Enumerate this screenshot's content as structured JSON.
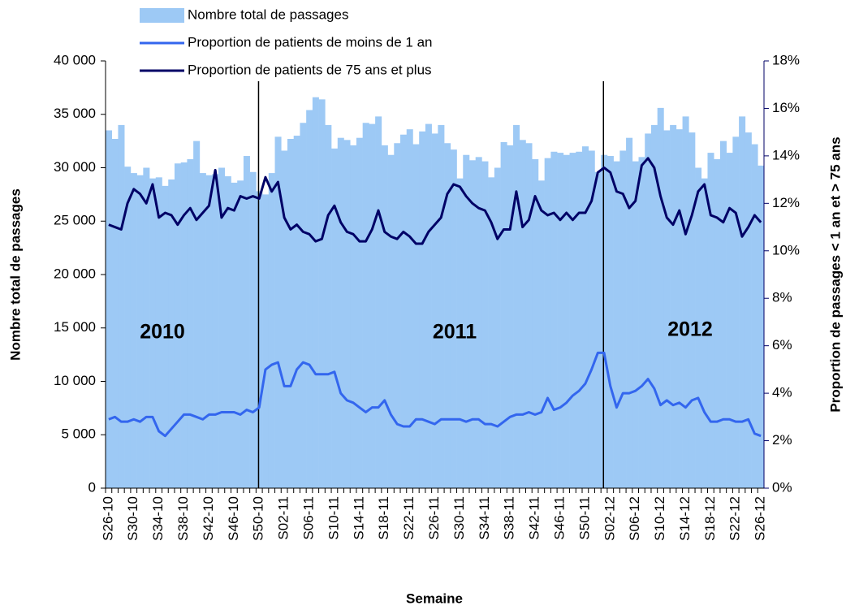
{
  "chart_data": {
    "type": "bar",
    "xlabel": "Semaine",
    "ylabel": "Nombre total de passages",
    "y2label": "Proportion de passages < 1 an et > 75 ans",
    "annotations": [
      "2010",
      "2011",
      "2012"
    ],
    "categories": [
      "S26-10",
      null,
      null,
      null,
      "S30-10",
      null,
      null,
      null,
      "S34-10",
      null,
      null,
      null,
      "S38-10",
      null,
      null,
      null,
      "S42-10",
      null,
      null,
      null,
      "S46-10",
      null,
      null,
      null,
      "S50-10",
      null,
      null,
      null,
      "S02-11",
      null,
      null,
      null,
      "S06-11",
      null,
      null,
      null,
      "S10-11",
      null,
      null,
      null,
      "S14-11",
      null,
      null,
      null,
      "S18-11",
      null,
      null,
      null,
      "S22-11",
      null,
      null,
      null,
      "S26-11",
      null,
      null,
      null,
      "S30-11",
      null,
      null,
      null,
      "S34-11",
      null,
      null,
      null,
      "S38-11",
      null,
      null,
      null,
      "S42-11",
      null,
      null,
      null,
      "S46-11",
      null,
      null,
      null,
      "S50-11",
      null,
      null,
      null,
      "S02-12",
      null,
      null,
      null,
      "S06-12",
      null,
      null,
      null,
      "S10-12",
      null,
      null,
      null,
      "S14-12",
      null,
      null,
      null,
      "S18-12",
      null,
      null,
      null,
      "S22-12",
      null,
      null,
      null,
      "S26-12"
    ],
    "series": [
      {
        "name": "Nombre total de passages",
        "type": "bar",
        "color": "#9dc9f5",
        "values": [
          33500,
          32700,
          34000,
          30100,
          29500,
          29300,
          30000,
          29000,
          29100,
          28300,
          28900,
          30400,
          30500,
          30800,
          32500,
          29500,
          29300,
          29400,
          30000,
          29200,
          28600,
          28800,
          31100,
          29600,
          27800,
          27500,
          29500,
          32900,
          31600,
          32700,
          33000,
          34200,
          35400,
          36600,
          36400,
          34000,
          31800,
          32800,
          32600,
          32100,
          32800,
          34200,
          34100,
          34800,
          32100,
          31200,
          32300,
          33100,
          33600,
          32200,
          33400,
          34100,
          33200,
          34000,
          32300,
          31700,
          29000,
          31200,
          30700,
          31000,
          30600,
          29100,
          30000,
          32400,
          32100,
          34000,
          32600,
          32300,
          30800,
          28800,
          30900,
          31500,
          31400,
          31200,
          31400,
          31500,
          32000,
          31600,
          29600,
          31200,
          31100,
          30600,
          31600,
          32800,
          30600,
          31000,
          33200,
          34000,
          35600,
          33500,
          34000,
          33600,
          34800,
          33300,
          30000,
          29000,
          31400,
          30800,
          32500,
          31400,
          32900,
          34800,
          33300,
          32200,
          30200
        ]
      },
      {
        "name": "Proportion de patients de moins de 1 an",
        "type": "line",
        "axis": "y2",
        "color": "#3366ee",
        "values": [
          2.9,
          3.0,
          2.8,
          2.8,
          2.9,
          2.8,
          3.0,
          3.0,
          2.4,
          2.2,
          2.5,
          2.8,
          3.1,
          3.1,
          3.0,
          2.9,
          3.1,
          3.1,
          3.2,
          3.2,
          3.2,
          3.1,
          3.3,
          3.2,
          3.4,
          5.0,
          5.2,
          5.3,
          4.3,
          4.3,
          5.0,
          5.3,
          5.2,
          4.8,
          4.8,
          4.8,
          4.9,
          4.0,
          3.7,
          3.6,
          3.4,
          3.2,
          3.4,
          3.4,
          3.7,
          3.1,
          2.7,
          2.6,
          2.6,
          2.9,
          2.9,
          2.8,
          2.7,
          2.9,
          2.9,
          2.9,
          2.9,
          2.8,
          2.9,
          2.9,
          2.7,
          2.7,
          2.6,
          2.8,
          3.0,
          3.1,
          3.1,
          3.2,
          3.1,
          3.2,
          3.8,
          3.3,
          3.4,
          3.6,
          3.9,
          4.1,
          4.4,
          5.0,
          5.7,
          5.7,
          4.3,
          3.4,
          4.0,
          4.0,
          4.1,
          4.3,
          4.6,
          4.2,
          3.5,
          3.7,
          3.5,
          3.6,
          3.4,
          3.7,
          3.8,
          3.2,
          2.8,
          2.8,
          2.9,
          2.9,
          2.8,
          2.8,
          2.9,
          2.3,
          2.2
        ]
      },
      {
        "name": "Proportion de patients de 75 ans et plus",
        "type": "line",
        "axis": "y2",
        "color": "#000066",
        "values": [
          11.1,
          11.0,
          10.9,
          12.0,
          12.6,
          12.4,
          12.0,
          12.8,
          11.4,
          11.6,
          11.5,
          11.1,
          11.5,
          11.8,
          11.3,
          11.6,
          11.9,
          13.4,
          11.4,
          11.8,
          11.7,
          12.3,
          12.2,
          12.3,
          12.2,
          13.1,
          12.5,
          12.9,
          11.4,
          10.9,
          11.1,
          10.8,
          10.7,
          10.4,
          10.5,
          11.5,
          11.9,
          11.2,
          10.8,
          10.7,
          10.4,
          10.4,
          10.9,
          11.7,
          10.8,
          10.6,
          10.5,
          10.8,
          10.6,
          10.3,
          10.3,
          10.8,
          11.1,
          11.4,
          12.4,
          12.8,
          12.7,
          12.3,
          12.0,
          11.8,
          11.7,
          11.2,
          10.5,
          10.9,
          10.9,
          12.5,
          11.0,
          11.3,
          12.3,
          11.7,
          11.5,
          11.6,
          11.3,
          11.6,
          11.3,
          11.6,
          11.6,
          12.1,
          13.3,
          13.5,
          13.3,
          12.5,
          12.4,
          11.8,
          12.1,
          13.6,
          13.9,
          13.5,
          12.3,
          11.4,
          11.1,
          11.7,
          10.7,
          11.5,
          12.5,
          12.8,
          11.5,
          11.4,
          11.2,
          11.8,
          11.6,
          10.6,
          11.0,
          11.5,
          11.2
        ]
      }
    ],
    "ylim": [
      0,
      40000
    ],
    "yticks": [
      0,
      {
        "value": 5000,
        "label": "5 000"
      },
      {
        "value": 10000,
        "label": "10 000"
      },
      {
        "value": 15000,
        "label": "15 000"
      },
      {
        "value": 20000,
        "label": "20 000"
      },
      {
        "value": 25000,
        "label": "25 000"
      },
      {
        "value": 30000,
        "label": "30 000"
      },
      {
        "value": 35000,
        "label": "35 000"
      },
      {
        "value": 40000,
        "label": "40 000"
      }
    ],
    "y2lim": [
      0,
      18
    ],
    "y2ticks": [
      {
        "value": 0,
        "label": "0%"
      },
      {
        "value": 2,
        "label": "2%"
      },
      {
        "value": 4,
        "label": "4%"
      },
      {
        "value": 6,
        "label": "6%"
      },
      {
        "value": 8,
        "label": "8%"
      },
      {
        "value": 10,
        "label": "10%"
      },
      {
        "value": 12,
        "label": "12%"
      },
      {
        "value": 14,
        "label": "14%"
      },
      {
        "value": 16,
        "label": "16%"
      },
      {
        "value": 18,
        "label": "18%"
      }
    ],
    "grid": false,
    "legend": "top"
  }
}
